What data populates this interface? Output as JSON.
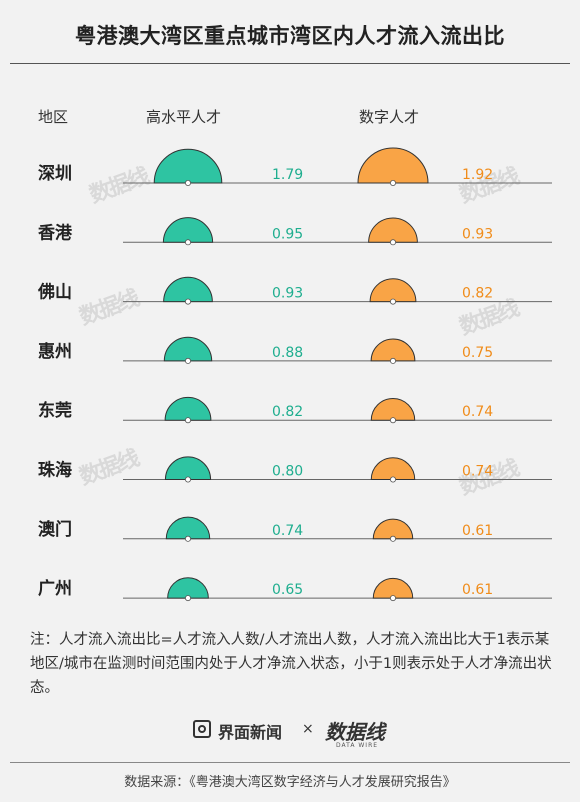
{
  "title": "粤港澳大湾区重点城市湾区内人才流入流出比",
  "headers": {
    "region": "地区",
    "high_level": "高水平人才",
    "digital": "数字人才"
  },
  "colors": {
    "high_level": "#2ec4a2",
    "digital": "#f9a446",
    "high_level_label": "#1fae8f",
    "digital_label": "#f08c1a"
  },
  "chart_data": {
    "type": "semicircle",
    "title": "粤港澳大湾区重点城市湾区内人才流入流出比",
    "categories": [
      "深圳",
      "香港",
      "佛山",
      "惠州",
      "东莞",
      "珠海",
      "澳门",
      "广州"
    ],
    "series": [
      {
        "name": "高水平人才",
        "values": [
          1.79,
          0.95,
          0.93,
          0.88,
          0.82,
          0.8,
          0.74,
          0.65
        ]
      },
      {
        "name": "数字人才",
        "values": [
          1.92,
          0.93,
          0.82,
          0.75,
          0.74,
          0.74,
          0.61,
          0.61
        ]
      }
    ],
    "value_labels": {
      "high_level": [
        "1.79",
        "0.95",
        "0.93",
        "0.88",
        "0.82",
        "0.80",
        "0.74",
        "0.65"
      ],
      "digital": [
        "1.92",
        "0.93",
        "0.82",
        "0.75",
        "0.74",
        "0.74",
        "0.61",
        "0.61"
      ]
    }
  },
  "watermark": "数据线",
  "note": "注：人才流入流出比=人才流入人数/人才流出人数，人才流入流出比大于1表示某地区/城市在监测时间范围内处于人才净流入状态，小于1则表示处于人才净流出状态。",
  "footer": {
    "logo1_text": "界面新闻",
    "times": "×",
    "logo2_text": "数据线",
    "logo2_sub": "DATA WIRE",
    "source": "数据来源：《粤港澳大湾区数字经济与人才发展研究报告》"
  }
}
